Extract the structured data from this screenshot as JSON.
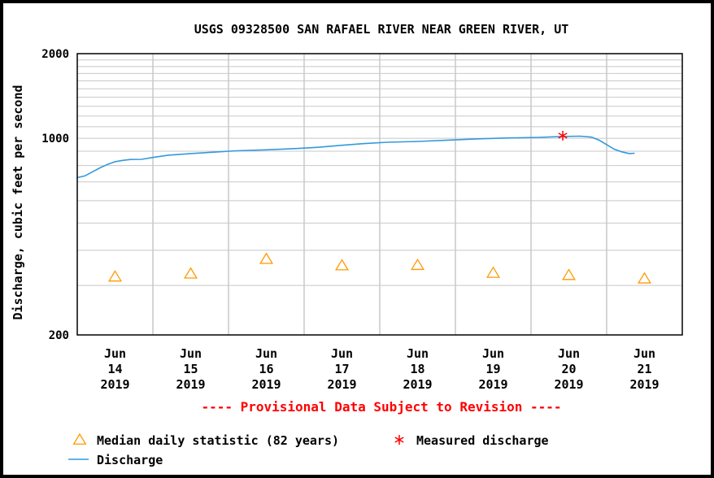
{
  "chart_data": {
    "type": "line",
    "title": "USGS 09328500 SAN RAFAEL RIVER NEAR GREEN RIVER, UT",
    "ylabel": "Discharge, cubic feet per second",
    "xlabel": "",
    "yscale": "log",
    "ylim": [
      200,
      2000
    ],
    "xlim": [
      13.5,
      21.5
    ],
    "y_tick_labels": [
      {
        "value": 2000,
        "label": "2000"
      },
      {
        "value": 1000,
        "label": "1000"
      },
      {
        "value": 200,
        "label": "200"
      }
    ],
    "x_tick_labels": [
      {
        "x": 14,
        "lines": [
          "Jun",
          "14",
          "2019"
        ]
      },
      {
        "x": 15,
        "lines": [
          "Jun",
          "15",
          "2019"
        ]
      },
      {
        "x": 16,
        "lines": [
          "Jun",
          "16",
          "2019"
        ]
      },
      {
        "x": 17,
        "lines": [
          "Jun",
          "17",
          "2019"
        ]
      },
      {
        "x": 18,
        "lines": [
          "Jun",
          "18",
          "2019"
        ]
      },
      {
        "x": 19,
        "lines": [
          "Jun",
          "19",
          "2019"
        ]
      },
      {
        "x": 20,
        "lines": [
          "Jun",
          "20",
          "2019"
        ]
      },
      {
        "x": 21,
        "lines": [
          "Jun",
          "21",
          "2019"
        ]
      }
    ],
    "grid": true,
    "series": [
      {
        "name": "Discharge",
        "kind": "line",
        "color": "#3399dd",
        "points": [
          [
            13.5,
            725
          ],
          [
            13.6,
            735
          ],
          [
            13.7,
            760
          ],
          [
            13.8,
            785
          ],
          [
            13.9,
            808
          ],
          [
            14.0,
            826
          ],
          [
            14.1,
            835
          ],
          [
            14.2,
            841
          ],
          [
            14.35,
            842
          ],
          [
            14.5,
            855
          ],
          [
            14.7,
            871
          ],
          [
            15.0,
            883
          ],
          [
            15.3,
            893
          ],
          [
            15.6,
            903
          ],
          [
            16.0,
            910
          ],
          [
            16.4,
            920
          ],
          [
            16.7,
            930
          ],
          [
            17.0,
            945
          ],
          [
            17.3,
            958
          ],
          [
            17.6,
            968
          ],
          [
            18.0,
            975
          ],
          [
            18.4,
            985
          ],
          [
            18.8,
            996
          ],
          [
            19.2,
            1003
          ],
          [
            19.6,
            1008
          ],
          [
            19.9,
            1015
          ],
          [
            20.15,
            1018
          ],
          [
            20.3,
            1010
          ],
          [
            20.4,
            985
          ],
          [
            20.5,
            950
          ],
          [
            20.6,
            915
          ],
          [
            20.7,
            895
          ],
          [
            20.8,
            883
          ],
          [
            20.87,
            885
          ]
        ]
      },
      {
        "name": "Median daily statistic (82 years)",
        "kind": "markers",
        "marker": "triangle",
        "color": "#ff9900",
        "points": [
          [
            14,
            322
          ],
          [
            15,
            330
          ],
          [
            16,
            372
          ],
          [
            17,
            353
          ],
          [
            18,
            354
          ],
          [
            19,
            332
          ],
          [
            20,
            326
          ],
          [
            21,
            317
          ]
        ]
      },
      {
        "name": "Measured discharge",
        "kind": "markers",
        "marker": "asterisk",
        "color": "#ff0000",
        "points": [
          [
            19.92,
            1022
          ]
        ]
      }
    ],
    "annotation": "---- Provisional Data Subject to Revision ----",
    "legend": {
      "placement": "bottom-left",
      "entries": [
        {
          "label": "Median daily statistic (82 years)",
          "symbol": "triangle",
          "color": "#ff9900"
        },
        {
          "label": "Measured discharge",
          "symbol": "asterisk",
          "color": "#ff0000"
        },
        {
          "label": "Discharge",
          "symbol": "line",
          "color": "#3399dd"
        }
      ]
    }
  }
}
